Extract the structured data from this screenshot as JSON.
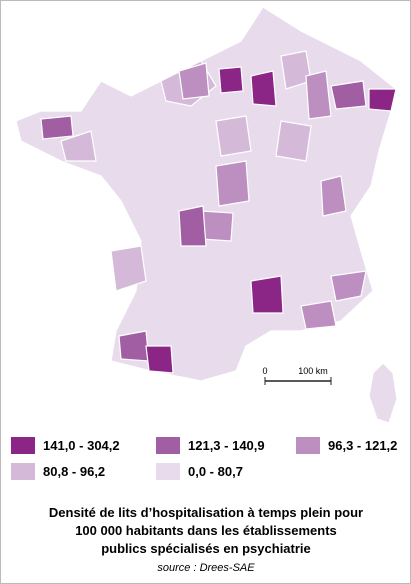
{
  "map": {
    "scale": {
      "start": "0",
      "end": "100 km"
    }
  },
  "legend": [
    {
      "label": "141,0 - 304,2",
      "color": "#8b2586"
    },
    {
      "label": "121,3 - 140,9",
      "color": "#a15ea3"
    },
    {
      "label": "96,3 - 121,2",
      "color": "#bd8ec0"
    },
    {
      "label": "80,8 - 96,2",
      "color": "#d5b9d8"
    },
    {
      "label": "0,0 - 80,7",
      "color": "#e8dcec"
    }
  ],
  "caption": {
    "lines": [
      "Densité de lits d’hospitalisation à temps plein pour",
      "100 000 habitants dans les établissements",
      "publics spécialisés en psychiatrie"
    ],
    "source": "source : Drees-SAE"
  }
}
